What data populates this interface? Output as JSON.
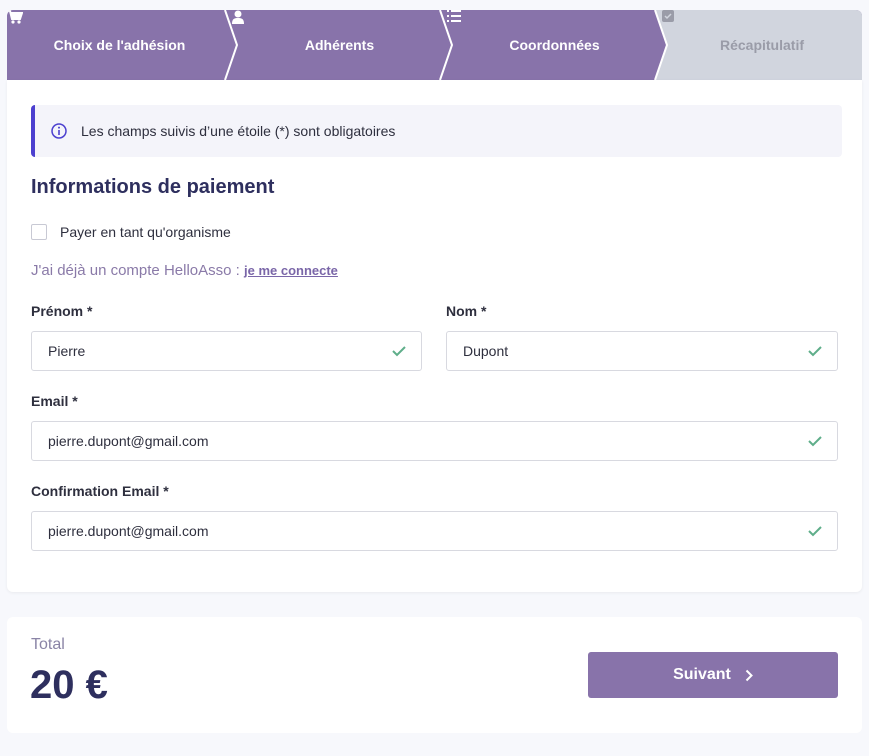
{
  "colors": {
    "accent": "#8873aa",
    "info_border": "#4c40cf",
    "check": "#5fae8a",
    "inactive": "#d1d5de"
  },
  "steps": [
    {
      "label": "Choix de l'adhésion",
      "icon": "cart-icon",
      "state": "done"
    },
    {
      "label": "Adhérents",
      "icon": "user-icon",
      "state": "done"
    },
    {
      "label": "Coordonnées",
      "icon": "list-icon",
      "state": "current"
    },
    {
      "label": "Récapitulatif",
      "icon": "checkbox-icon",
      "state": "upcoming"
    }
  ],
  "info": {
    "icon": "info-icon",
    "text": "Les champs suivis d’une étoile (*) sont obligatoires"
  },
  "section_title": "Informations de paiement",
  "org_checkbox": {
    "label": "Payer en tant qu'organisme",
    "checked": false
  },
  "account": {
    "text": "J'ai déjà un compte HelloAsso :",
    "link": "je me connecte"
  },
  "fields": {
    "firstname": {
      "label": "Prénom *",
      "value": "Pierre"
    },
    "lastname": {
      "label": "Nom *",
      "value": "Dupont"
    },
    "email": {
      "label": "Email *",
      "value": "pierre.dupont@gmail.com"
    },
    "email_confirm": {
      "label": "Confirmation Email *",
      "value": "pierre.dupont@gmail.com"
    }
  },
  "footer": {
    "total_label": "Total",
    "total_value": "20 €",
    "next_label": "Suivant"
  }
}
